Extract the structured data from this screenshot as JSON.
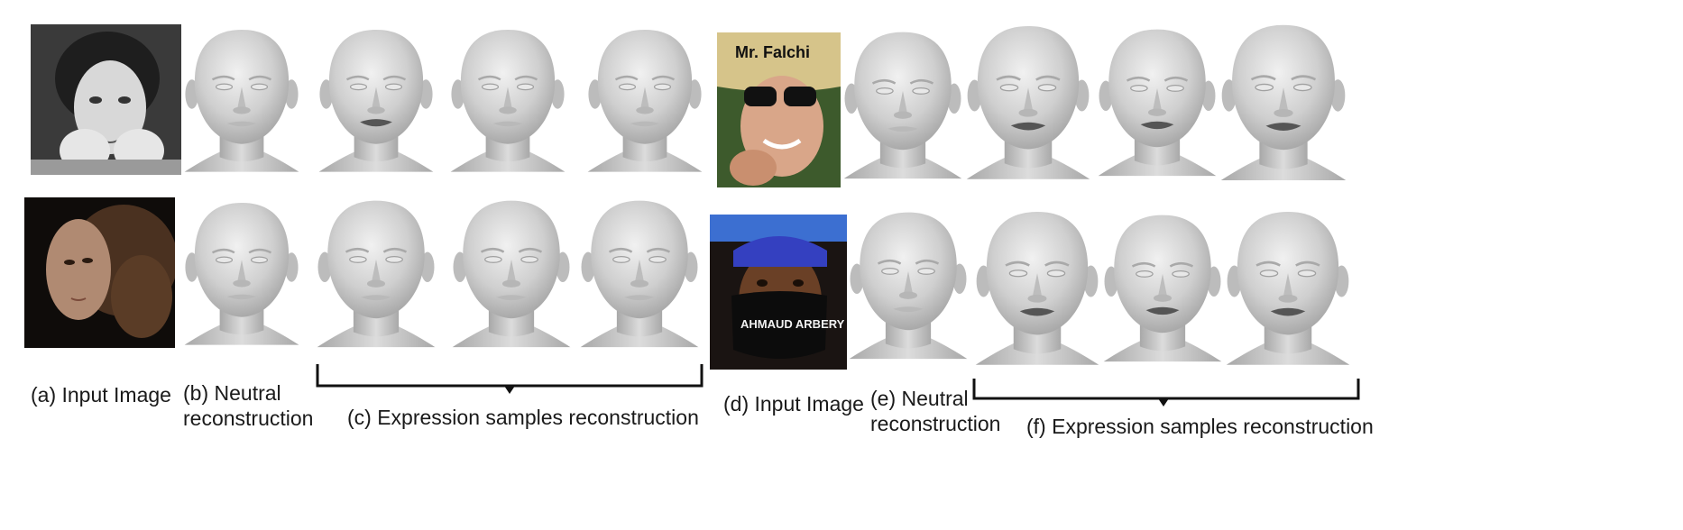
{
  "figure": {
    "left_panel": {
      "captions": {
        "input": "(a) Input Image",
        "neutral_line1": "(b) Neutral",
        "neutral_line2": "reconstruction",
        "expressions": "(c) Expression samples reconstruction"
      }
    },
    "right_panel": {
      "captions": {
        "input": "(d) Input Image",
        "neutral_line1": "(e) Neutral",
        "neutral_line2": "reconstruction",
        "expressions": "(f) Expression samples reconstruction"
      },
      "hat_text": "Mr. Falchi",
      "mask_text": "AHMAUD ARBERY"
    },
    "colors": {
      "mesh": "#c9c9c9",
      "bracket": "#111111"
    }
  }
}
